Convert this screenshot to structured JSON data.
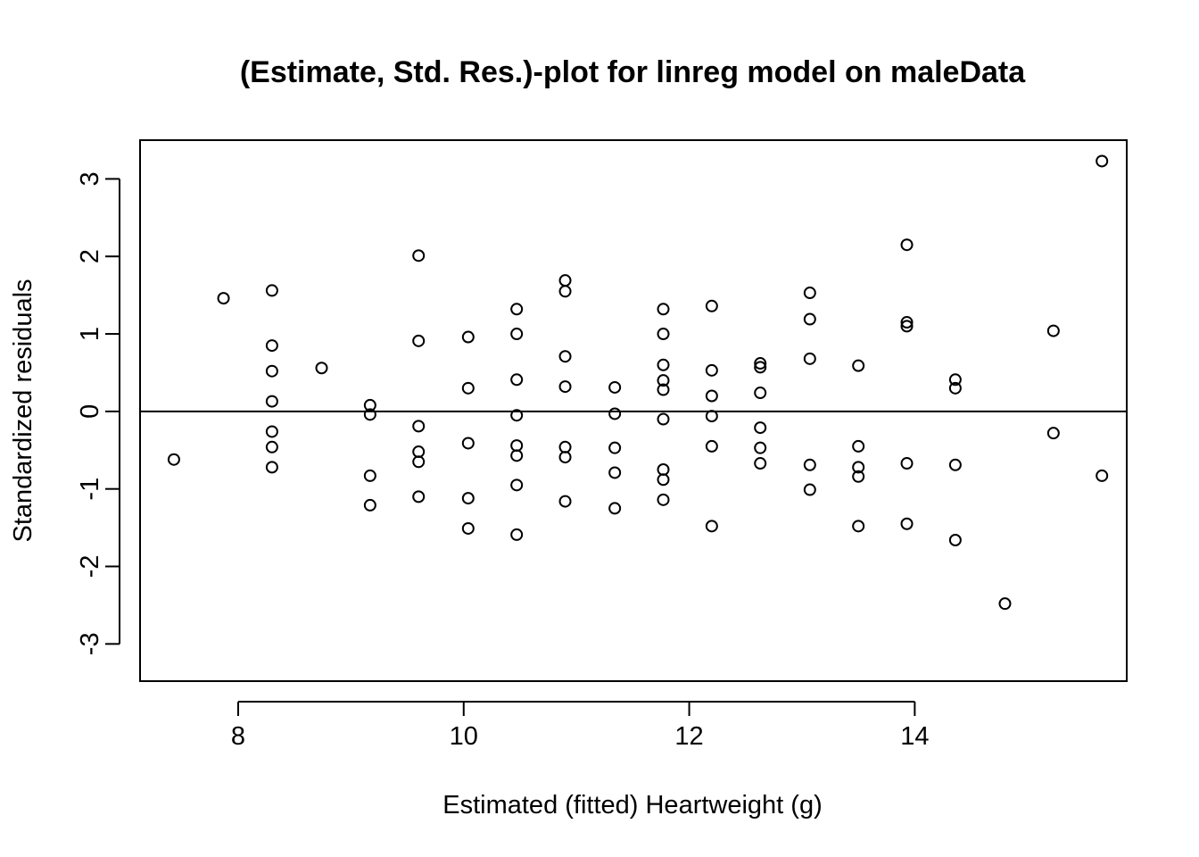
{
  "chart_data": {
    "type": "scatter",
    "title": "(Estimate, Std. Res.)-plot for linreg model on maleData",
    "xlabel": "Estimated (fitted) Heartweight (g)",
    "ylabel": "Standardized residuals",
    "xlim": [
      7.13,
      15.88
    ],
    "ylim": [
      -3.48,
      3.5
    ],
    "xticks": [
      8,
      10,
      12,
      14
    ],
    "yticks": [
      -3,
      -2,
      -1,
      0,
      1,
      2,
      3
    ],
    "reference_line_y": 0,
    "grid": false,
    "legend": "none",
    "x": [
      7.43,
      7.87,
      8.3,
      8.3,
      8.3,
      8.3,
      8.3,
      8.3,
      8.3,
      8.74,
      9.17,
      9.17,
      9.17,
      9.17,
      9.6,
      9.6,
      9.6,
      9.6,
      9.6,
      9.6,
      10.04,
      10.04,
      10.04,
      10.04,
      10.04,
      10.47,
      10.47,
      10.47,
      10.47,
      10.47,
      10.47,
      10.47,
      10.47,
      10.9,
      10.9,
      10.9,
      10.9,
      10.9,
      10.9,
      10.9,
      11.34,
      11.34,
      11.34,
      11.34,
      11.34,
      11.77,
      11.77,
      11.77,
      11.77,
      11.77,
      11.77,
      11.77,
      11.77,
      11.77,
      12.2,
      12.2,
      12.2,
      12.2,
      12.2,
      12.2,
      12.63,
      12.63,
      12.63,
      12.63,
      12.63,
      12.63,
      13.07,
      13.07,
      13.07,
      13.07,
      13.07,
      13.5,
      13.5,
      13.5,
      13.5,
      13.5,
      13.93,
      13.93,
      13.93,
      13.93,
      13.93,
      14.36,
      14.36,
      14.36,
      14.36,
      14.8,
      15.23,
      15.23,
      15.66,
      15.66
    ],
    "y": [
      -0.62,
      1.46,
      1.56,
      0.85,
      0.52,
      0.13,
      -0.26,
      -0.46,
      -0.72,
      0.56,
      0.08,
      -0.04,
      -0.83,
      -1.21,
      2.01,
      0.91,
      -0.19,
      -0.52,
      -0.65,
      -1.1,
      0.96,
      0.3,
      -0.41,
      -1.12,
      -1.51,
      1.32,
      1.0,
      0.41,
      -0.05,
      -0.44,
      -0.57,
      -0.95,
      -1.59,
      1.69,
      1.55,
      0.71,
      0.32,
      -0.46,
      -0.59,
      -1.16,
      0.31,
      -0.03,
      -0.47,
      -0.79,
      -1.25,
      1.32,
      1.0,
      0.6,
      0.4,
      0.28,
      -0.1,
      -0.75,
      -0.88,
      -1.14,
      1.36,
      0.53,
      0.2,
      -0.06,
      -0.45,
      -1.48,
      0.62,
      0.57,
      0.24,
      -0.21,
      -0.47,
      -0.67,
      1.53,
      1.19,
      0.68,
      -0.69,
      -1.01,
      0.59,
      -0.45,
      -0.72,
      -0.84,
      -1.48,
      2.15,
      1.15,
      1.1,
      -0.67,
      -1.45,
      0.41,
      0.3,
      -0.69,
      -1.66,
      -2.48,
      1.04,
      -0.28,
      3.23,
      -0.83
    ]
  }
}
